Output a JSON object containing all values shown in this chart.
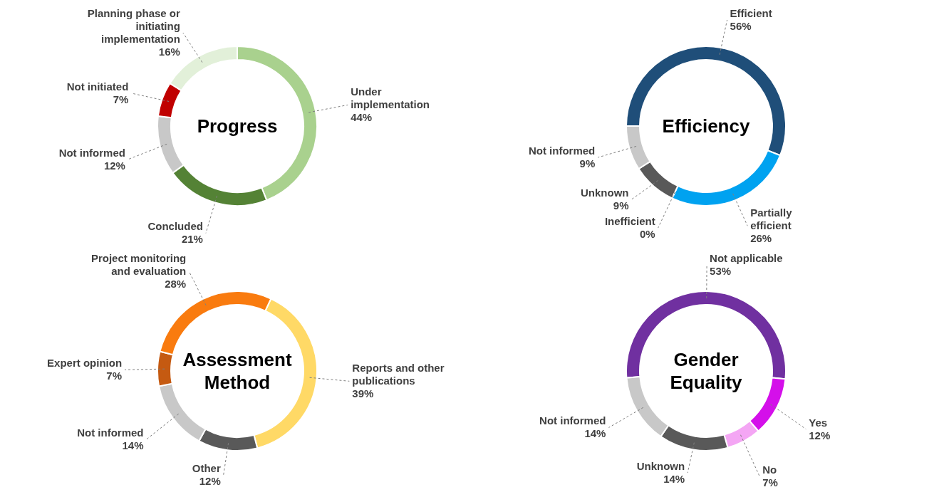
{
  "chart_data": [
    {
      "type": "donut",
      "title": "Progress",
      "categories": [
        "Under implementation",
        "Concluded",
        "Not informed",
        "Not initiated",
        "Planning phase or initiating implementation"
      ],
      "values": [
        44,
        21,
        12,
        7,
        16
      ],
      "colors": [
        "#a9d18e",
        "#548235",
        "#c8c8c8",
        "#c00000",
        "#e2f0d9"
      ],
      "value_labels": [
        "44%",
        "21%",
        "12%",
        "7%",
        "16%"
      ]
    },
    {
      "type": "donut",
      "title": "Efficiency",
      "categories": [
        "Efficient",
        "Partially efficient",
        "Inefficient",
        "Unknown",
        "Not informed"
      ],
      "values": [
        56,
        26,
        0,
        9,
        9
      ],
      "colors": [
        "#1f4e79",
        "#00a2f0",
        "#3a3a3a",
        "#595959",
        "#c8c8c8"
      ],
      "value_labels": [
        "56%",
        "26%",
        "0%",
        "9%",
        "9%"
      ]
    },
    {
      "type": "donut",
      "title": "Assessment Method",
      "categories": [
        "Reports and other publications",
        "Other",
        "Not informed",
        "Expert opinion",
        "Project monitoring and evaluation"
      ],
      "values": [
        39,
        12,
        14,
        7,
        28
      ],
      "colors": [
        "#ffd966",
        "#595959",
        "#c8c8c8",
        "#c55a11",
        "#f97b0f"
      ],
      "value_labels": [
        "39%",
        "12%",
        "14%",
        "7%",
        "28%"
      ]
    },
    {
      "type": "donut",
      "title": "Gender Equality",
      "categories": [
        "Not applicable",
        "Yes",
        "No",
        "Unknown",
        "Not informed"
      ],
      "values": [
        53,
        12,
        7,
        14,
        14
      ],
      "colors": [
        "#7030a0",
        "#d40fea",
        "#f4a6f4",
        "#595959",
        "#c8c8c8"
      ],
      "value_labels": [
        "53%",
        "12%",
        "7%",
        "14%",
        "14%"
      ]
    }
  ]
}
